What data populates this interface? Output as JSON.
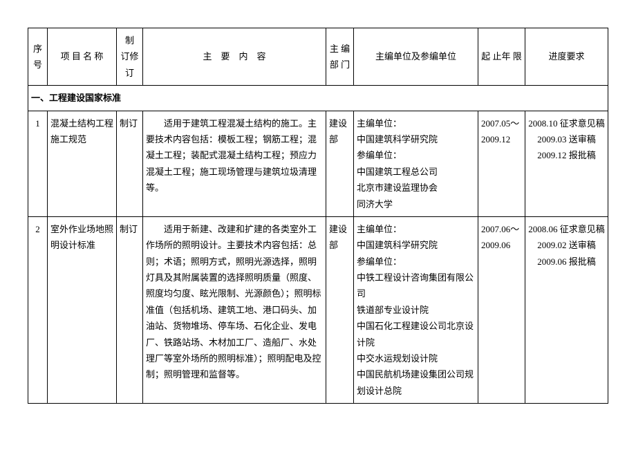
{
  "headers": {
    "seq": "序号",
    "name": "项 目 名 称",
    "rev": "制 订修 订",
    "content": "主　要　内　容",
    "dept": "主 编部 门",
    "units": "主编单位及参编单位",
    "period": "起 止年 限",
    "progress": "进度要求"
  },
  "section1": {
    "title": "一、工程建设国家标准"
  },
  "rows": [
    {
      "seq": "1",
      "name": "混凝土结构工程施工规范",
      "rev": "制订",
      "content": "　　适用于建筑工程混凝土结构的施工。主要技术内容包括：模板工程；钢筋工程；混凝土工程；装配式混凝土结构工程；预应力混凝土工程；施工现场管理与建筑垃圾清理等。",
      "dept": "建设部",
      "units": "主编单位：\n中国建筑科学研究院\n参编单位：\n中国建筑工程总公司\n北京市建设监理协会\n同济大学",
      "period": "2007.05～2009.12",
      "progress": "2008.10 征求意见稿\n2009.03 送审稿\n2009.12 报批稿"
    },
    {
      "seq": "2",
      "name": "室外作业场地照明设计标准",
      "rev": "制订",
      "content": "　　适用于新建、改建和扩建的各类室外工作场所的照明设计。主要技术内容包括：总则；术语；照明方式，照明光源选择，照明灯具及其附属装置的选择照明质量（照度、照度均匀度、眩光限制、光源颜色）；照明标准值（包括机场、建筑工地、港口码头、加油站、货物堆场、停车场、石化企业、发电厂、铁路站场、木材加工厂、造船厂、水处理厂等室外场所的照明标准）；照明配电及控制；照明管理和监督等。",
      "dept": "建设部",
      "units": "主编单位：\n中国建筑科学研究院\n参编单位：\n中铁工程设计咨询集团有限公司\n铁道部专业设计院\n中国石化工程建设公司北京设计院\n中交水运规划设计院\n中国民航机场建设集团公司规划设计总院",
      "period": "2007.06～2009.06",
      "progress": "2008.06 征求意见稿\n2009.02 送审稿\n2009.06 报批稿"
    }
  ]
}
